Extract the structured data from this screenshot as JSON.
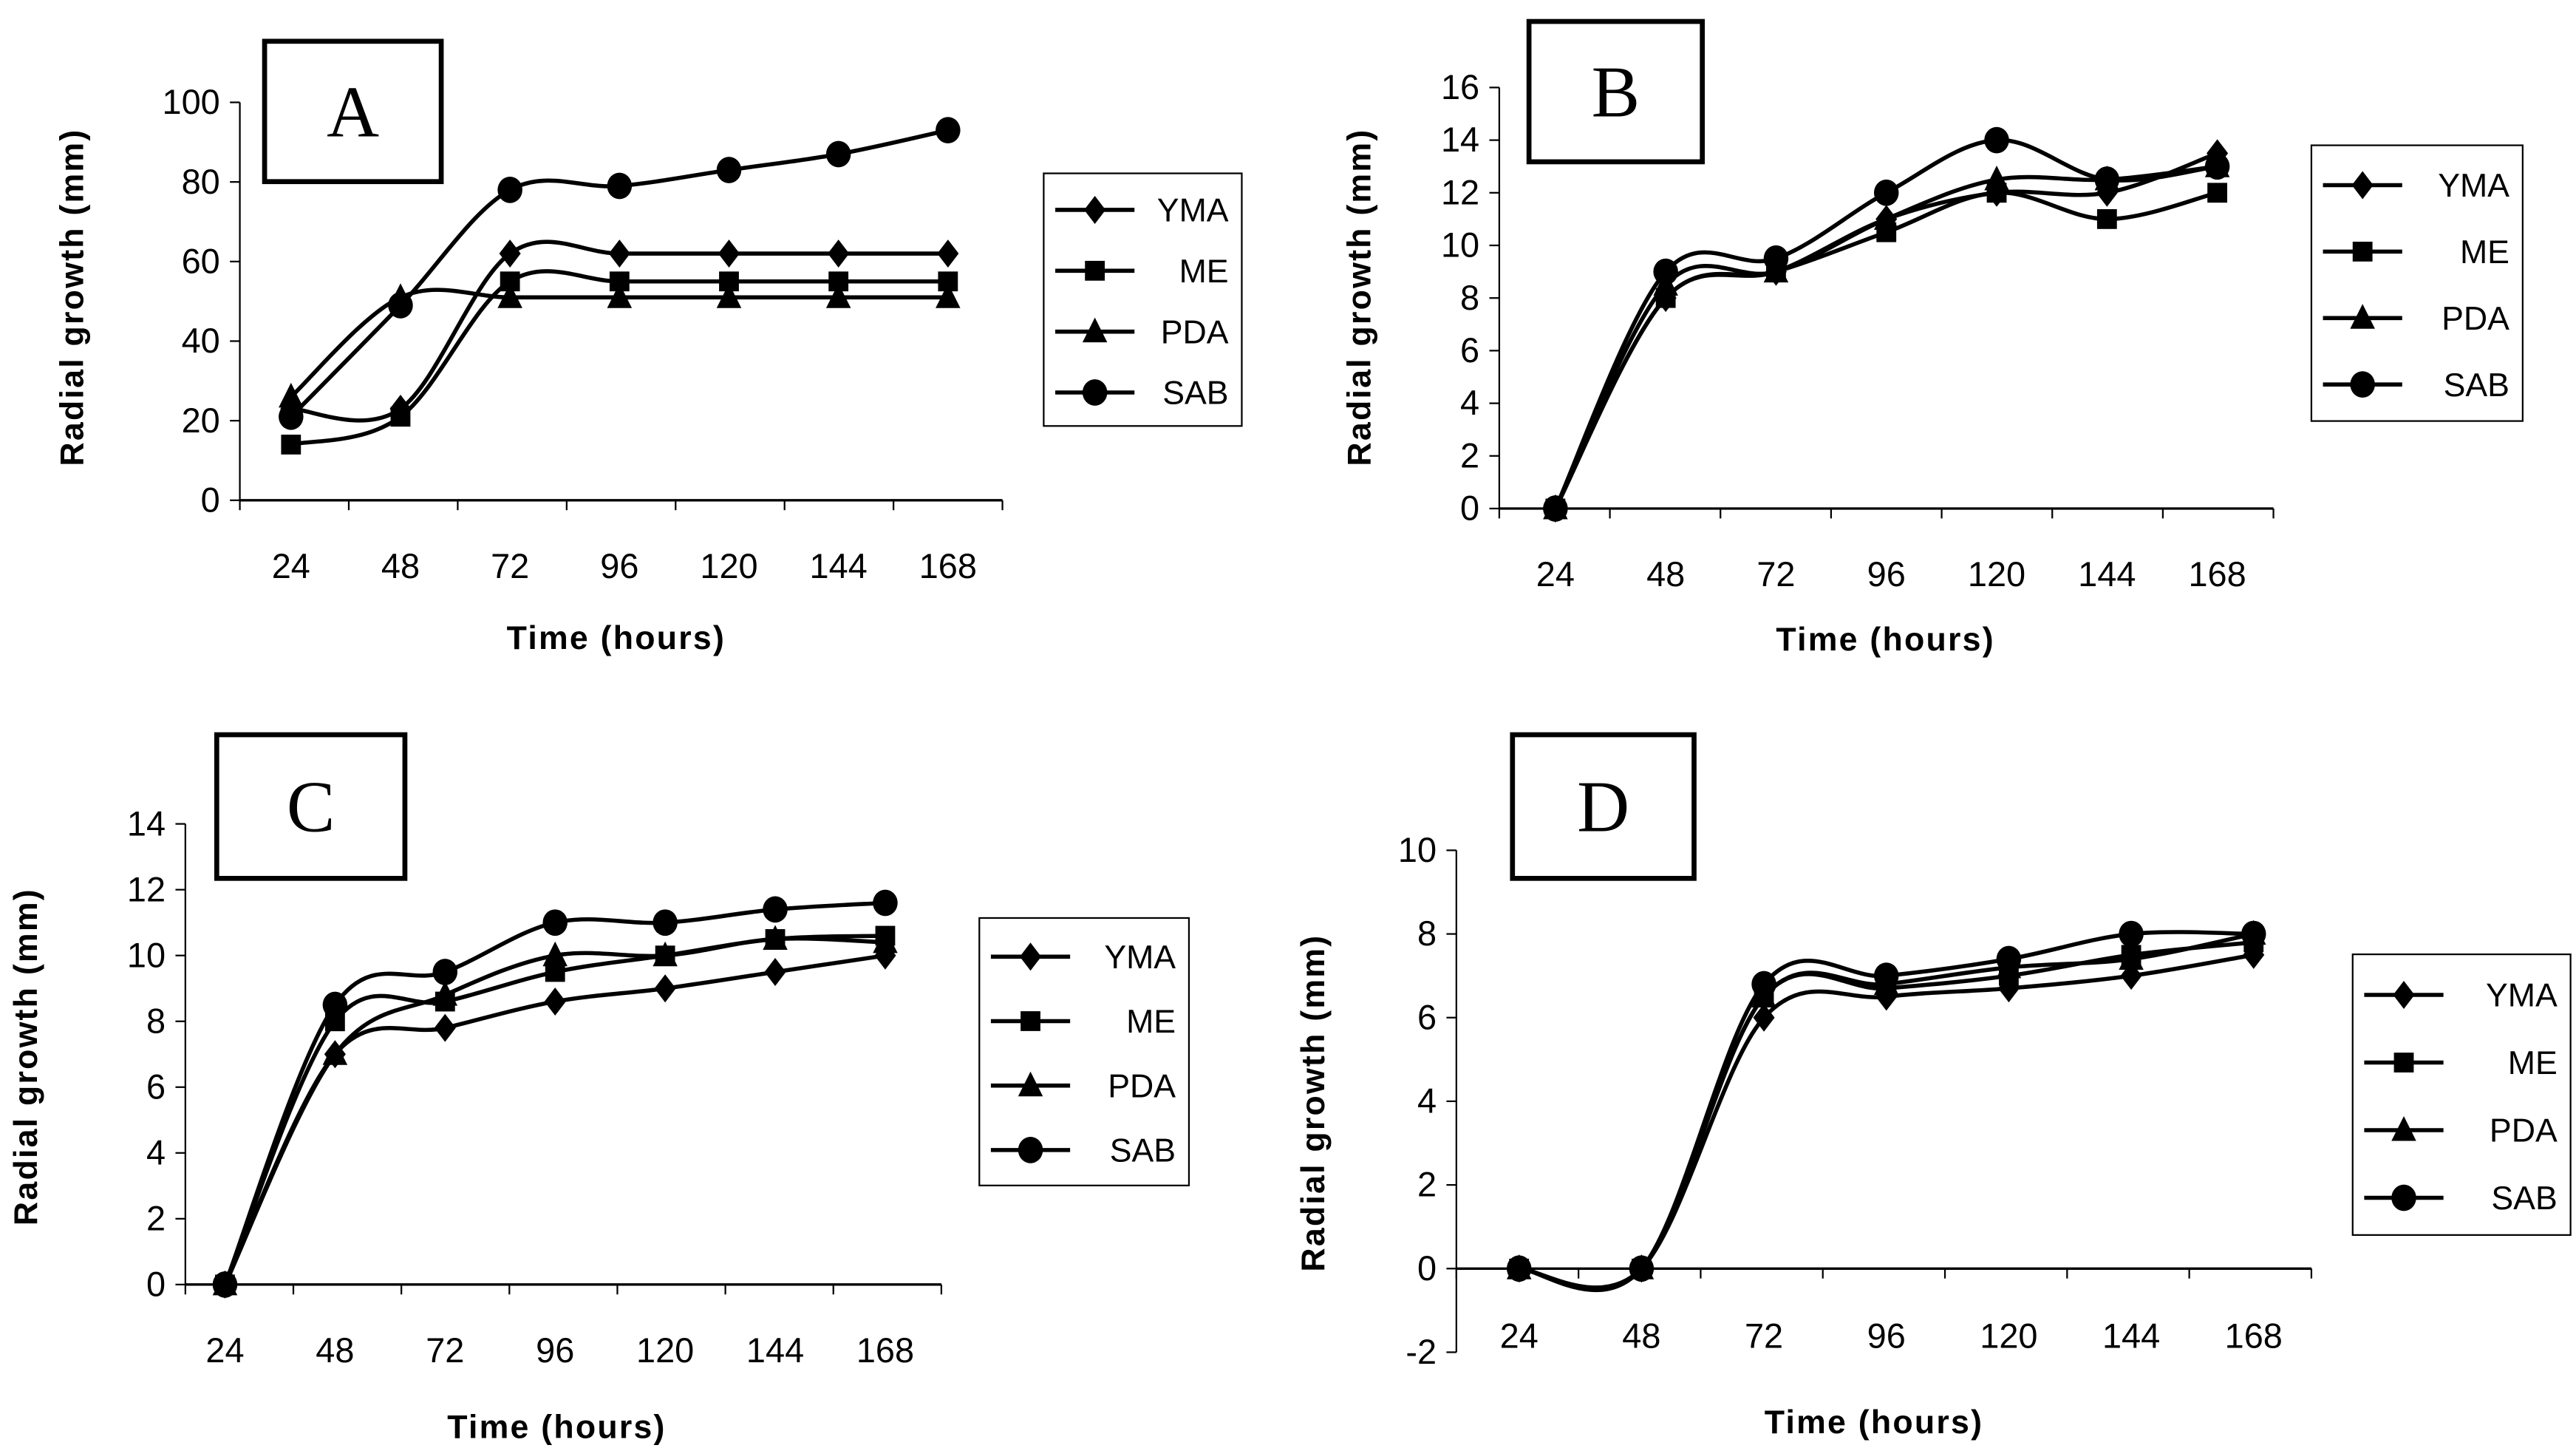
{
  "chart_data": [
    {
      "type": "line",
      "panel_label": "A",
      "xlabel": "Time (hours)",
      "ylabel": "Radial growth (mm)",
      "categories": [
        "24",
        "48",
        "72",
        "96",
        "120",
        "144",
        "168"
      ],
      "ylim": [
        0,
        100
      ],
      "yticks": [
        0,
        20,
        40,
        60,
        80,
        100
      ],
      "legend": "right",
      "series": [
        {
          "name": "YMA",
          "marker": "diamond",
          "values": [
            23,
            23,
            62,
            62,
            62,
            62,
            62
          ]
        },
        {
          "name": "ME",
          "marker": "square",
          "values": [
            14,
            21,
            55,
            55,
            55,
            55,
            55
          ]
        },
        {
          "name": "PDA",
          "marker": "triangle",
          "values": [
            26,
            51,
            51,
            51,
            51,
            51,
            51
          ]
        },
        {
          "name": "SAB",
          "marker": "circle",
          "values": [
            21,
            49,
            78,
            79,
            83,
            87,
            93
          ]
        }
      ]
    },
    {
      "type": "line",
      "panel_label": "B",
      "xlabel": "Time (hours)",
      "ylabel": "Radial growth (mm)",
      "categories": [
        "24",
        "48",
        "72",
        "96",
        "120",
        "144",
        "168"
      ],
      "ylim": [
        0,
        16
      ],
      "yticks": [
        0,
        2,
        4,
        6,
        8,
        10,
        12,
        14,
        16
      ],
      "legend": "right",
      "series": [
        {
          "name": "YMA",
          "marker": "diamond",
          "values": [
            0,
            8,
            9,
            11,
            12,
            12,
            13.5
          ]
        },
        {
          "name": "ME",
          "marker": "square",
          "values": [
            0,
            8,
            9,
            10.5,
            12,
            11,
            12
          ]
        },
        {
          "name": "PDA",
          "marker": "triangle",
          "values": [
            0,
            8.5,
            9,
            11,
            12.5,
            12.5,
            13
          ]
        },
        {
          "name": "SAB",
          "marker": "circle",
          "values": [
            0,
            9,
            9.5,
            12,
            14,
            12.5,
            13
          ]
        }
      ]
    },
    {
      "type": "line",
      "panel_label": "C",
      "xlabel": "Time (hours)",
      "ylabel": "Radial growth (mm)",
      "categories": [
        "24",
        "48",
        "72",
        "96",
        "120",
        "144",
        "168"
      ],
      "ylim": [
        0,
        14
      ],
      "yticks": [
        0,
        2,
        4,
        6,
        8,
        10,
        12,
        14
      ],
      "legend": "right",
      "series": [
        {
          "name": "YMA",
          "marker": "diamond",
          "values": [
            0,
            7,
            7.8,
            8.6,
            9,
            9.5,
            10
          ]
        },
        {
          "name": "ME",
          "marker": "square",
          "values": [
            0,
            8,
            8.6,
            9.5,
            10,
            10.5,
            10.6
          ]
        },
        {
          "name": "PDA",
          "marker": "triangle",
          "values": [
            0,
            7,
            8.8,
            10,
            10,
            10.5,
            10.4
          ]
        },
        {
          "name": "SAB",
          "marker": "circle",
          "values": [
            0,
            8.5,
            9.5,
            11,
            11,
            11.4,
            11.6
          ]
        }
      ]
    },
    {
      "type": "line",
      "panel_label": "D",
      "xlabel": "Time  (hours)",
      "ylabel": "Radial growth (mm)",
      "categories": [
        "24",
        "48",
        "72",
        "96",
        "120",
        "144",
        "168"
      ],
      "ylim": [
        -2,
        10
      ],
      "yticks": [
        -2,
        0,
        2,
        4,
        6,
        8,
        10
      ],
      "legend": "right",
      "series": [
        {
          "name": "YMA",
          "marker": "diamond",
          "values": [
            0,
            0,
            6,
            6.5,
            6.7,
            7,
            7.5
          ]
        },
        {
          "name": "ME",
          "marker": "square",
          "values": [
            0,
            0,
            6.5,
            6.7,
            7,
            7.5,
            7.8
          ]
        },
        {
          "name": "PDA",
          "marker": "triangle",
          "values": [
            0,
            0,
            6.5,
            6.8,
            7.2,
            7.4,
            8
          ]
        },
        {
          "name": "SAB",
          "marker": "circle",
          "values": [
            0,
            0,
            6.8,
            7,
            7.4,
            8,
            8
          ]
        }
      ]
    }
  ]
}
